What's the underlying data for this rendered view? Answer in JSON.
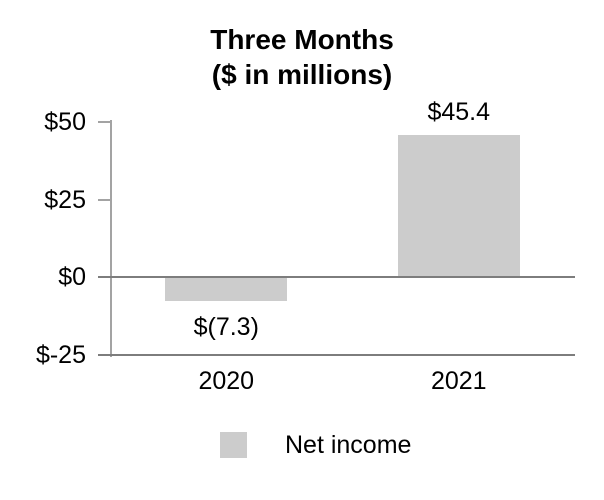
{
  "chart_data": {
    "type": "bar",
    "title": "Three Months",
    "subtitle": "($ in millions)",
    "categories": [
      "2020",
      "2021"
    ],
    "series": [
      {
        "name": "Net income",
        "values": [
          -7.3,
          45.4
        ],
        "value_labels": [
          "$(7.3)",
          "$45.4"
        ]
      }
    ],
    "ylim": [
      -25,
      50
    ],
    "yticks": [
      {
        "value": 50,
        "label": "$50"
      },
      {
        "value": 25,
        "label": "$25"
      },
      {
        "value": 0,
        "label": "$0"
      },
      {
        "value": -25,
        "label": "$-25"
      }
    ],
    "grid": "none",
    "legend": {
      "position": "bottom",
      "entries": [
        "Net income"
      ]
    },
    "colors": {
      "bar": "#cccccc",
      "legend_swatch": "#cccccc",
      "axis_line": "#a3a3a3",
      "zero_line": "#7d7d7d",
      "text": "#000000",
      "background": "#ffffff"
    }
  }
}
